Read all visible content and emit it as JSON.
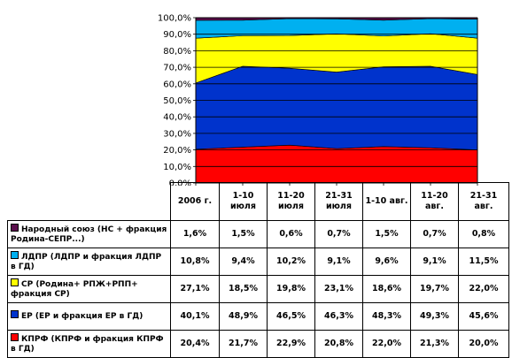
{
  "chart_data": {
    "type": "area",
    "stacked": true,
    "normalized": true,
    "title": "",
    "xlabel": "",
    "ylabel": "",
    "ylim": [
      0,
      100
    ],
    "y_ticks": [
      "0,0%",
      "10,0%",
      "20,0%",
      "30,0%",
      "40,0%",
      "50,0%",
      "60,0%",
      "70,0%",
      "80,0%",
      "90,0%",
      "100,0%"
    ],
    "grid": true,
    "legend": "table-below",
    "categories": [
      "2006 г.",
      "1-10 июля",
      "11-20 июля",
      "21-31 июля",
      "1-10 авг.",
      "11-20 авг.",
      "21-31 авг."
    ],
    "series": [
      {
        "name": "Народный союз (НС + фракция Родина-СЕПР...)",
        "color": "#5b0f4d",
        "values": [
          1.6,
          1.5,
          0.6,
          0.7,
          1.5,
          0.7,
          0.8
        ],
        "labels": [
          "1,6%",
          "1,5%",
          "0,6%",
          "0,7%",
          "1,5%",
          "0,7%",
          "0,8%"
        ]
      },
      {
        "name": "ЛДПР (ЛДПР и фракция ЛДПР в ГД)",
        "color": "#00b0f0",
        "values": [
          10.8,
          9.4,
          10.2,
          9.1,
          9.6,
          9.1,
          11.5
        ],
        "labels": [
          "10,8%",
          "9,4%",
          "10,2%",
          "9,1%",
          "9,6%",
          "9,1%",
          "11,5%"
        ]
      },
      {
        "name": "СР (Родина+ РПЖ+РПП+ фракция СР)",
        "color": "#ffff00",
        "values": [
          27.1,
          18.5,
          19.8,
          23.1,
          18.6,
          19.7,
          22.0
        ],
        "labels": [
          "27,1%",
          "18,5%",
          "19,8%",
          "23,1%",
          "18,6%",
          "19,7%",
          "22,0%"
        ]
      },
      {
        "name": "ЕР (ЕР и фракция ЕР в ГД)",
        "color": "#0033cc",
        "values": [
          40.1,
          48.9,
          46.5,
          46.3,
          48.3,
          49.3,
          45.6
        ],
        "labels": [
          "40,1%",
          "48,9%",
          "46,5%",
          "46,3%",
          "48,3%",
          "49,3%",
          "45,6%"
        ]
      },
      {
        "name": "КПРФ (КПРФ и фракция КПРФ в ГД)",
        "color": "#ff0000",
        "values": [
          20.4,
          21.7,
          22.9,
          20.8,
          22.0,
          21.3,
          20.0
        ],
        "labels": [
          "20,4%",
          "21,7%",
          "22,9%",
          "20,8%",
          "22,0%",
          "21,3%",
          "20,0%"
        ]
      }
    ]
  },
  "table": {
    "headers": [
      "2006 г.",
      "1-10 июля",
      "11-20 июля",
      "21-31 июля",
      "1-10 авг.",
      "11-20 авг.",
      "21-31 авг."
    ]
  }
}
